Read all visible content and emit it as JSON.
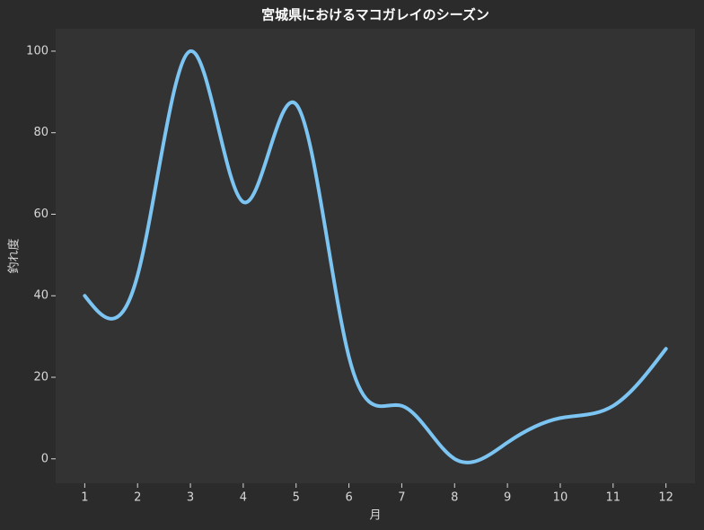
{
  "chart_data": {
    "type": "line",
    "title": "宮城県におけるマコガレイのシーズン",
    "x_label": "月",
    "y_label": "釣れ度",
    "x": [
      1,
      2,
      3,
      4,
      5,
      6,
      7,
      8,
      9,
      10,
      11,
      12
    ],
    "series": [
      {
        "name": "釣れ度",
        "color": "#7cc4f2",
        "values": [
          40,
          45,
          100,
          63,
          87,
          25,
          13,
          0,
          4,
          10,
          13,
          27
        ]
      }
    ],
    "xlim": [
      0.45,
      12.55
    ],
    "xticks": [
      1,
      2,
      3,
      4,
      5,
      6,
      7,
      8,
      9,
      10,
      11,
      12
    ],
    "ylim": [
      -6,
      105.5
    ],
    "yticks": [
      0,
      20,
      40,
      60,
      80,
      100
    ],
    "grid": false,
    "smooth": true
  }
}
